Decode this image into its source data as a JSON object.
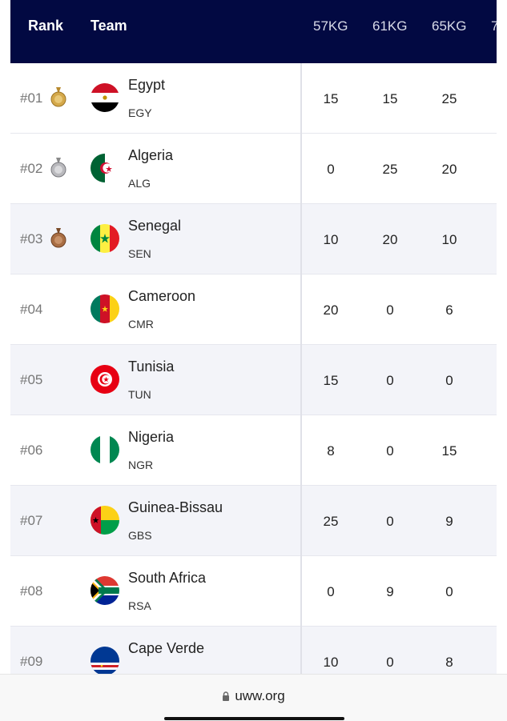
{
  "header": {
    "rank_label": "Rank",
    "team_label": "Team",
    "columns": [
      "57KG",
      "61KG",
      "65KG",
      "7"
    ]
  },
  "rows": [
    {
      "rank": "#01",
      "team": "Egypt",
      "code": "EGY",
      "scores": [
        "15",
        "15",
        "25"
      ],
      "medal": "gold-medal-icon",
      "flag": "egypt-flag-icon"
    },
    {
      "rank": "#02",
      "team": "Algeria",
      "code": "ALG",
      "scores": [
        "0",
        "25",
        "20"
      ],
      "medal": "silver-medal-icon",
      "flag": "algeria-flag-icon"
    },
    {
      "rank": "#03",
      "team": "Senegal",
      "code": "SEN",
      "scores": [
        "10",
        "20",
        "10"
      ],
      "medal": "bronze-medal-icon",
      "flag": "senegal-flag-icon"
    },
    {
      "rank": "#04",
      "team": "Cameroon",
      "code": "CMR",
      "scores": [
        "20",
        "0",
        "6"
      ],
      "flag": "cameroon-flag-icon"
    },
    {
      "rank": "#05",
      "team": "Tunisia",
      "code": "TUN",
      "scores": [
        "15",
        "0",
        "0"
      ],
      "flag": "tunisia-flag-icon"
    },
    {
      "rank": "#06",
      "team": "Nigeria",
      "code": "NGR",
      "scores": [
        "8",
        "0",
        "15"
      ],
      "flag": "nigeria-flag-icon"
    },
    {
      "rank": "#07",
      "team": "Guinea-Bissau",
      "code": "GBS",
      "scores": [
        "25",
        "0",
        "9"
      ],
      "flag": "guinea-bissau-flag-icon"
    },
    {
      "rank": "#08",
      "team": "South Africa",
      "code": "RSA",
      "scores": [
        "0",
        "9",
        "0"
      ],
      "flag": "south-africa-flag-icon"
    },
    {
      "rank": "#09",
      "team": "Cape Verde",
      "code": "",
      "scores": [
        "10",
        "0",
        "8"
      ],
      "flag": "cape-verde-flag-icon"
    }
  ],
  "browser": {
    "url": "uww.org",
    "lock_icon": "lock-icon"
  },
  "colors": {
    "header_bg": "#020942",
    "row_alt_bg": "#f3f4f9"
  }
}
